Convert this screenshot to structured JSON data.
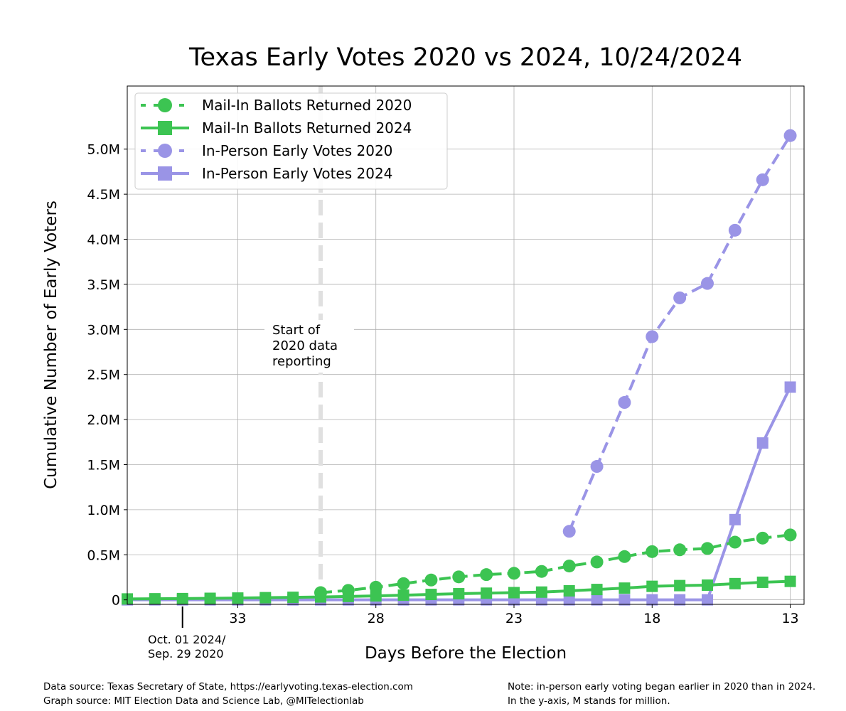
{
  "chart_data": {
    "type": "line",
    "title": "Texas Early Votes 2020 vs 2024, 10/24/2024",
    "xlabel": "Days Before the Election",
    "ylabel": "Cumulative Number of Early Voters",
    "xlim": [
      37,
      12.5
    ],
    "ylim": [
      -50000,
      5700000
    ],
    "x_ticks": [
      33,
      28,
      23,
      18,
      13
    ],
    "x_tick_labels": [
      "33",
      "28",
      "23",
      "18",
      "13"
    ],
    "y_ticks": [
      0,
      500000,
      1000000,
      1500000,
      2000000,
      2500000,
      3000000,
      3500000,
      4000000,
      4500000,
      5000000
    ],
    "y_tick_labels": [
      "0",
      "0.5M",
      "1.0M",
      "1.5M",
      "2.0M",
      "2.5M",
      "3.0M",
      "3.5M",
      "4.0M",
      "4.5M",
      "5.0M"
    ],
    "grid": true,
    "legend_position": "top-left",
    "series": [
      {
        "name": "Mail-In Ballots Returned 2020",
        "color": "#3cc452",
        "style": "dotted",
        "marker": "circle",
        "x": [
          30,
          29,
          28,
          27,
          26,
          25,
          24,
          23,
          22,
          21,
          20,
          19,
          18,
          17,
          16,
          15,
          14,
          13
        ],
        "y": [
          80000,
          105000,
          140000,
          180000,
          220000,
          255000,
          280000,
          295000,
          315000,
          375000,
          420000,
          480000,
          535000,
          555000,
          570000,
          640000,
          685000,
          720000
        ]
      },
      {
        "name": "Mail-In Ballots Returned 2024",
        "color": "#3cc452",
        "style": "solid",
        "marker": "square",
        "x": [
          37,
          36,
          35,
          34,
          33,
          32,
          31,
          30,
          29,
          28,
          27,
          26,
          25,
          24,
          23,
          22,
          21,
          20,
          19,
          18,
          17,
          16,
          15,
          14,
          13
        ],
        "y": [
          10000,
          12000,
          14000,
          17000,
          20000,
          24000,
          28000,
          32000,
          38000,
          44000,
          52000,
          60000,
          68000,
          74000,
          80000,
          86000,
          100000,
          115000,
          130000,
          150000,
          158000,
          163000,
          180000,
          195000,
          205000
        ]
      },
      {
        "name": "In-Person Early Votes 2020",
        "color": "#9a94e6",
        "style": "dotted",
        "marker": "circle",
        "x": [
          21,
          20,
          19,
          18,
          17,
          16,
          15,
          14,
          13
        ],
        "y": [
          760000,
          1480000,
          2190000,
          2920000,
          3350000,
          3510000,
          4100000,
          4660000,
          5150000
        ]
      },
      {
        "name": "In-Person Early Votes 2024",
        "color": "#9a94e6",
        "style": "solid",
        "marker": "square",
        "x": [
          37,
          36,
          35,
          34,
          33,
          32,
          31,
          30,
          29,
          28,
          27,
          26,
          25,
          24,
          23,
          22,
          21,
          20,
          19,
          18,
          17,
          16,
          15,
          14,
          13
        ],
        "y": [
          0,
          0,
          0,
          0,
          0,
          0,
          0,
          0,
          0,
          0,
          0,
          0,
          0,
          0,
          0,
          0,
          0,
          0,
          0,
          0,
          0,
          0,
          890000,
          1740000,
          2360000
        ]
      }
    ],
    "vline": {
      "x": 30,
      "color": "#e0e0e0",
      "label_lines": [
        "Start of",
        "2020 data",
        "reporting"
      ]
    },
    "date_marker": {
      "x": 35,
      "label_lines": [
        "Oct. 01 2024/",
        "Sep. 29 2020"
      ]
    }
  },
  "footer": {
    "source_line": "Data source: Texas Secretary of State, https://earlyvoting.texas-election.com",
    "graph_line": "Graph source: MIT Election Data and Science Lab, @MITelectionlab",
    "note_line1": "Note: in-person early voting began earlier in 2020 than in 2024.",
    "note_line2": "In the y-axis, M stands for million."
  }
}
